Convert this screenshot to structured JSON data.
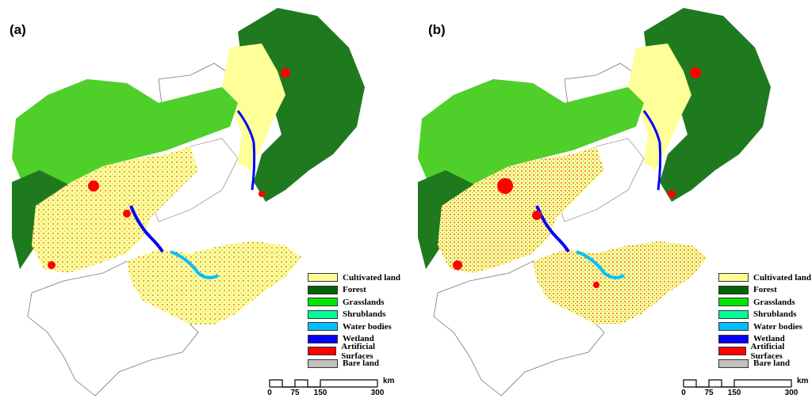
{
  "panels": [
    {
      "label": "(a)"
    },
    {
      "label": "(b)"
    }
  ],
  "legend": [
    {
      "label": "Cultivated land",
      "color": "#ffff99"
    },
    {
      "label": "Forest",
      "color": "#006400"
    },
    {
      "label": "Grasslands",
      "color": "#00e600"
    },
    {
      "label": "Shrublands",
      "color": "#00ff99"
    },
    {
      "label": "Water bodies",
      "color": "#00bfff"
    },
    {
      "label": "Wetland",
      "color": "#0000ff"
    },
    {
      "label": "Artificial Surfaces",
      "color": "#ff0000"
    },
    {
      "label": "Bare land",
      "color": "#c0c0c0"
    }
  ],
  "scalebar": {
    "unit": "km",
    "ticks": [
      "0",
      "75",
      "150",
      "300"
    ]
  }
}
